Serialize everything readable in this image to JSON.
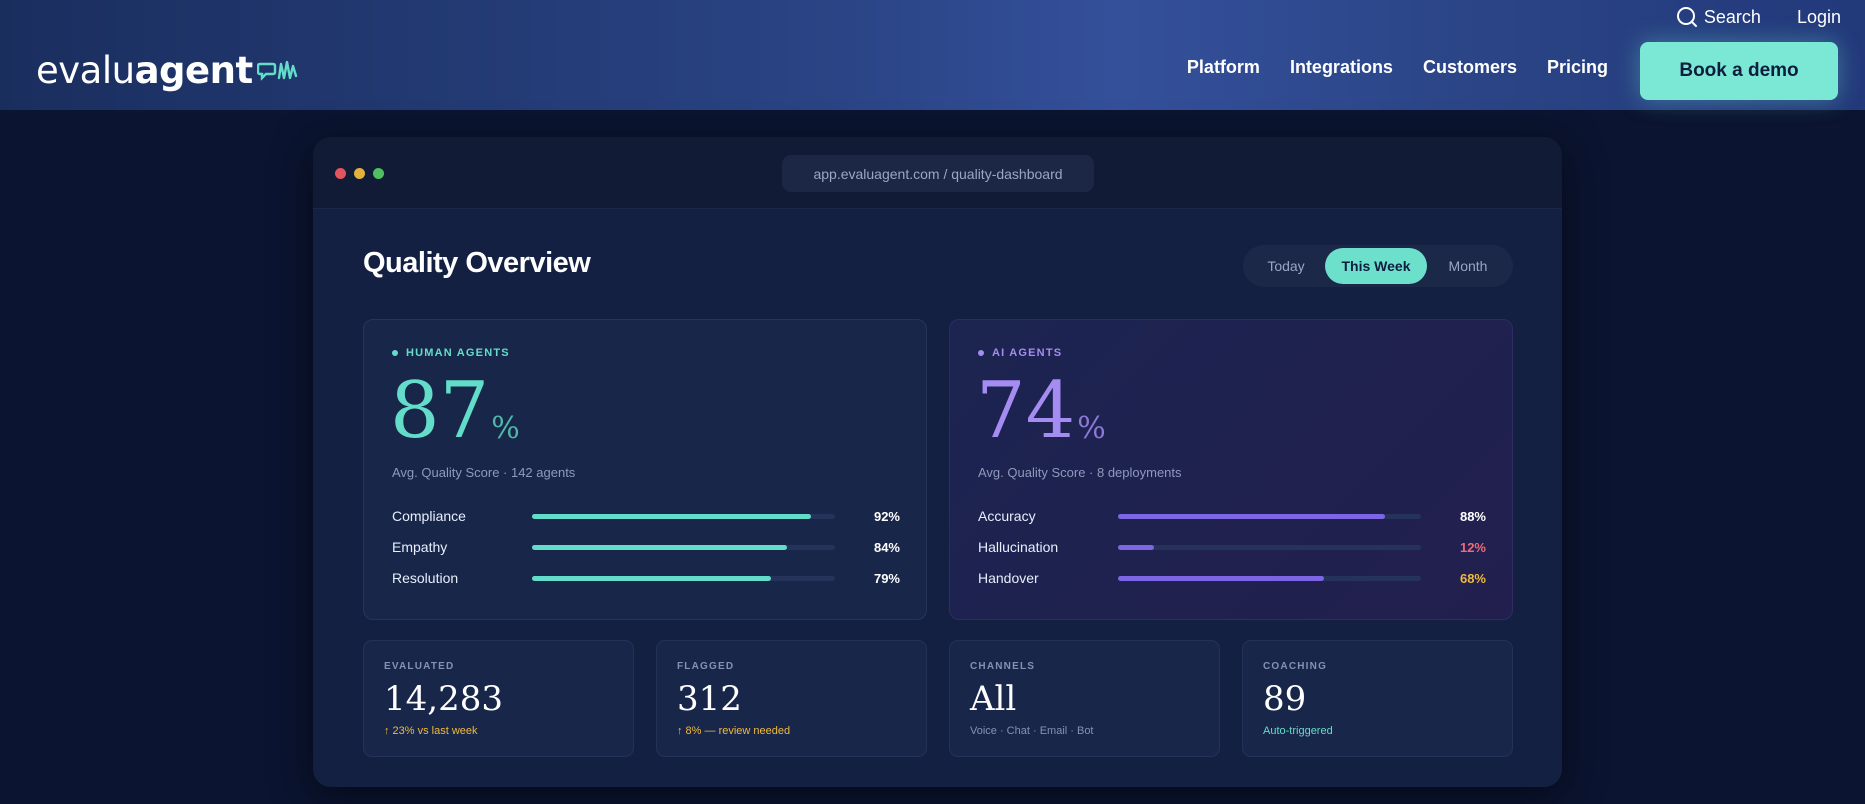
{
  "header": {
    "logo": {
      "light": "evalu",
      "bold": "agent"
    },
    "top_links": {
      "search": "Search",
      "login": "Login"
    },
    "nav": [
      "Platform",
      "Integrations",
      "Customers",
      "Pricing"
    ],
    "cta": "Book a demo",
    "accent_color": "#7be8d6"
  },
  "window": {
    "url": "app.evaluagent.com / quality-dashboard",
    "title": "Quality Overview",
    "range_tabs": [
      "Today",
      "This Week",
      "Month"
    ],
    "selected_tab": "This Week",
    "human": {
      "tag": "HUMAN AGENTS",
      "score": "87",
      "unit": "%",
      "subtitle": "Avg. Quality Score · 142 agents",
      "metrics": [
        {
          "label": "Compliance",
          "value": "92%",
          "fraction": 0.92
        },
        {
          "label": "Empathy",
          "value": "84%",
          "fraction": 0.84
        },
        {
          "label": "Resolution",
          "value": "79%",
          "fraction": 0.79
        }
      ],
      "color": "#63ddc9"
    },
    "ai": {
      "tag": "AI AGENTS",
      "score": "74",
      "unit": "%",
      "subtitle": "Avg. Quality Score · 8 deployments",
      "metrics": [
        {
          "label": "Accuracy",
          "value": "88%",
          "fraction": 0.88
        },
        {
          "label": "Hallucination",
          "value": "12%",
          "fraction": 0.12
        },
        {
          "label": "Handover",
          "value": "68%",
          "fraction": 0.68
        }
      ],
      "color": "#a48cf2"
    },
    "stats": [
      {
        "label": "EVALUATED",
        "value": "14,283",
        "note": "↑ 23% vs last week"
      },
      {
        "label": "FLAGGED",
        "value": "312",
        "note": "↑ 8% — review needed"
      },
      {
        "label": "CHANNELS",
        "value": "All",
        "note": "Voice · Chat · Email · Bot"
      },
      {
        "label": "COACHING",
        "value": "89",
        "note": "Auto-triggered"
      }
    ]
  }
}
